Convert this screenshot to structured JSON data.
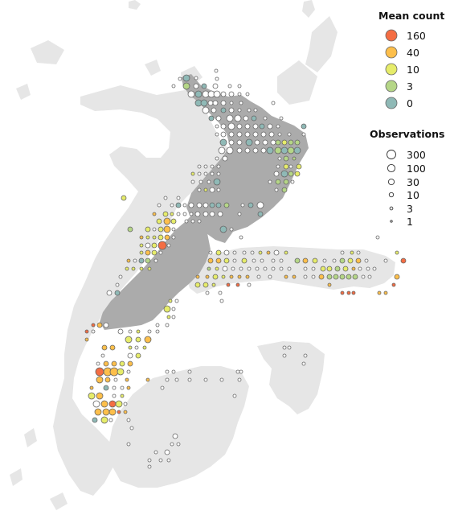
{
  "colors": {
    "land_background": "#e6e6e6",
    "land_highlight": "#ababab",
    "marker_stroke": "#666666",
    "mean_count": [
      "#f46d43",
      "#fdbf4b",
      "#e6ec6a",
      "#b5d687",
      "#8fb9b6"
    ]
  },
  "legend": {
    "mean_count": {
      "title": "Mean count",
      "items": [
        {
          "label": "160",
          "color": "#f46d43"
        },
        {
          "label": "40",
          "color": "#fdbf4b"
        },
        {
          "label": "10",
          "color": "#e6ec6a"
        },
        {
          "label": "3",
          "color": "#b5d687"
        },
        {
          "label": "0",
          "color": "#8fb9b6"
        }
      ]
    },
    "observations": {
      "title": "Observations",
      "items": [
        {
          "label": "300"
        },
        {
          "label": "100"
        },
        {
          "label": "30"
        },
        {
          "label": "10"
        },
        {
          "label": "3"
        },
        {
          "label": "1"
        }
      ]
    }
  }
}
